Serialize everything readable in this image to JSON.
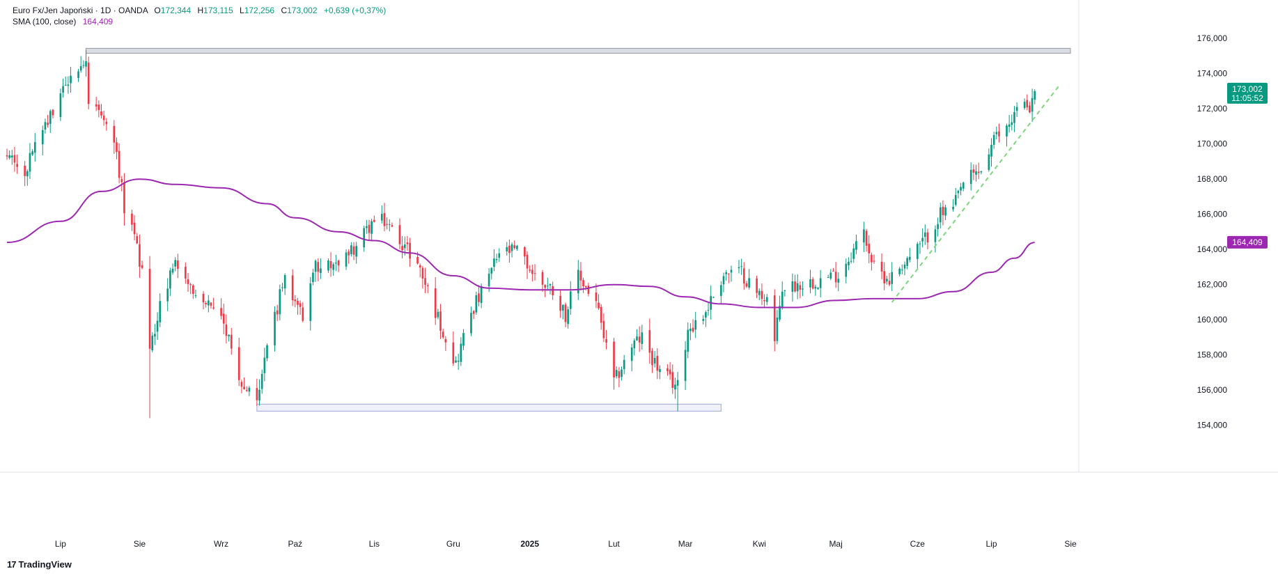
{
  "legend": {
    "symbol": "Euro Fx/Jen Japoński · 1D · OANDA",
    "open_label": "O",
    "open": "172,344",
    "high_label": "H",
    "high": "173,115",
    "low_label": "L",
    "low": "172,256",
    "close_label": "C",
    "close": "173,002",
    "change": "+0,639 (+0,37%)",
    "sma_label": "SMA (100, close)",
    "sma_value": "164,409"
  },
  "price_badge": {
    "price": "173,002",
    "countdown": "11:05:52",
    "color": "#089981"
  },
  "sma_badge": {
    "value": "164,409",
    "color": "#9c27b0"
  },
  "watermark": "TradingView",
  "colors": {
    "up": "#089981",
    "down": "#f23645",
    "sma": "#9c27b0",
    "trendline": "#7cd67c",
    "resistance_zone": "#b2b5be",
    "support_zone": "#c5cae9"
  },
  "chart_data": {
    "type": "candlestick",
    "title": "Euro Fx/Jen Japoński · 1D · OANDA",
    "y_ticks": [
      "176,000",
      "174,000",
      "172,000",
      "170,000",
      "168,000",
      "166,000",
      "164,000",
      "162,000",
      "160,000",
      "158,000",
      "156,000",
      "154,000"
    ],
    "ylim": [
      152.4,
      177.0
    ],
    "x_ticks": [
      "Lip",
      "Sie",
      "Wrz",
      "Paź",
      "Lis",
      "Gru",
      "2025",
      "Lut",
      "Mar",
      "Kwi",
      "Maj",
      "Cze",
      "Lip",
      "Sie"
    ],
    "x_tick_dates": [
      "2024-07-01",
      "2024-08-01",
      "2024-09-02",
      "2024-10-01",
      "2024-11-01",
      "2024-12-02",
      "2025-01-01",
      "2025-02-03",
      "2025-03-03",
      "2025-04-01",
      "2025-05-01",
      "2025-06-02",
      "2025-07-01",
      "2025-08-01"
    ],
    "close_waypoints": [
      [
        "2024-06-10",
        169.3
      ],
      [
        "2024-06-17",
        168.6
      ],
      [
        "2024-06-24",
        170.5
      ],
      [
        "2024-07-01",
        172.8
      ],
      [
        "2024-07-08",
        174.4
      ],
      [
        "2024-07-11",
        175.0
      ],
      [
        "2024-07-12",
        172.2
      ],
      [
        "2024-07-17",
        171.5
      ],
      [
        "2024-07-22",
        170.4
      ],
      [
        "2024-07-26",
        166.5
      ],
      [
        "2024-07-31",
        164.0
      ],
      [
        "2024-08-02",
        162.5
      ],
      [
        "2024-08-05",
        158.0
      ],
      [
        "2024-08-09",
        161.0
      ],
      [
        "2024-08-15",
        163.4
      ],
      [
        "2024-08-23",
        161.5
      ],
      [
        "2024-08-30",
        160.8
      ],
      [
        "2024-09-06",
        158.5
      ],
      [
        "2024-09-11",
        156.0
      ],
      [
        "2024-09-16",
        155.8
      ],
      [
        "2024-09-20",
        158.3
      ],
      [
        "2024-09-27",
        162.5
      ],
      [
        "2024-10-04",
        160.2
      ],
      [
        "2024-10-09",
        163.0
      ],
      [
        "2024-10-18",
        163.3
      ],
      [
        "2024-10-25",
        164.2
      ],
      [
        "2024-10-31",
        165.5
      ],
      [
        "2024-11-05",
        165.6
      ],
      [
        "2024-11-11",
        164.6
      ],
      [
        "2024-11-18",
        163.2
      ],
      [
        "2024-11-25",
        160.5
      ],
      [
        "2024-12-03",
        157.5
      ],
      [
        "2024-12-09",
        160.5
      ],
      [
        "2024-12-13",
        161.5
      ],
      [
        "2024-12-20",
        163.8
      ],
      [
        "2024-12-27",
        163.9
      ],
      [
        "2025-01-03",
        162.5
      ],
      [
        "2025-01-10",
        161.7
      ],
      [
        "2025-01-15",
        160.3
      ],
      [
        "2025-01-20",
        162.5
      ],
      [
        "2025-01-27",
        161.0
      ],
      [
        "2025-02-03",
        156.4
      ],
      [
        "2025-02-10",
        158.5
      ],
      [
        "2025-02-14",
        159.0
      ],
      [
        "2025-02-21",
        157.0
      ],
      [
        "2025-02-28",
        156.2
      ],
      [
        "2025-03-04",
        159.5
      ],
      [
        "2025-03-10",
        160.2
      ],
      [
        "2025-03-18",
        162.6
      ],
      [
        "2025-03-25",
        162.7
      ],
      [
        "2025-03-31",
        161.5
      ],
      [
        "2025-04-04",
        161.3
      ],
      [
        "2025-04-07",
        158.7
      ],
      [
        "2025-04-10",
        161.8
      ],
      [
        "2025-04-16",
        162.0
      ],
      [
        "2025-04-25",
        162.3
      ],
      [
        "2025-05-02",
        162.6
      ],
      [
        "2025-05-06",
        163.5
      ],
      [
        "2025-05-12",
        165.0
      ],
      [
        "2025-05-16",
        162.9
      ],
      [
        "2025-05-22",
        162.3
      ],
      [
        "2025-05-26",
        163.0
      ],
      [
        "2025-06-02",
        164.0
      ],
      [
        "2025-06-06",
        164.8
      ],
      [
        "2025-06-11",
        166.0
      ],
      [
        "2025-06-16",
        166.3
      ],
      [
        "2025-06-20",
        167.8
      ],
      [
        "2025-06-27",
        168.5
      ],
      [
        "2025-07-02",
        170.2
      ],
      [
        "2025-07-07",
        171.0
      ],
      [
        "2025-07-11",
        172.0
      ],
      [
        "2025-07-17",
        172.3
      ],
      [
        "2025-07-18",
        173.0
      ]
    ],
    "sma": {
      "name": "SMA (100, close)",
      "points": [
        [
          "2024-06-10",
          164.4
        ],
        [
          "2024-07-01",
          165.6
        ],
        [
          "2024-07-17",
          167.3
        ],
        [
          "2024-08-01",
          168.0
        ],
        [
          "2024-08-15",
          167.7
        ],
        [
          "2024-09-02",
          167.5
        ],
        [
          "2024-09-20",
          166.6
        ],
        [
          "2024-10-01",
          165.8
        ],
        [
          "2024-10-18",
          165.0
        ],
        [
          "2024-11-01",
          164.5
        ],
        [
          "2024-11-15",
          163.8
        ],
        [
          "2024-12-02",
          162.5
        ],
        [
          "2024-12-16",
          161.8
        ],
        [
          "2025-01-01",
          161.7
        ],
        [
          "2025-01-17",
          161.7
        ],
        [
          "2025-02-03",
          162.0
        ],
        [
          "2025-02-17",
          161.9
        ],
        [
          "2025-03-03",
          161.3
        ],
        [
          "2025-03-17",
          160.9
        ],
        [
          "2025-04-01",
          160.7
        ],
        [
          "2025-04-15",
          160.7
        ],
        [
          "2025-05-01",
          161.1
        ],
        [
          "2025-05-15",
          161.2
        ],
        [
          "2025-06-02",
          161.2
        ],
        [
          "2025-06-16",
          161.6
        ],
        [
          "2025-07-01",
          162.7
        ],
        [
          "2025-07-10",
          163.5
        ],
        [
          "2025-07-18",
          164.4
        ]
      ]
    },
    "resistance_zone": {
      "start": "2024-07-11",
      "end": "2025-08-01",
      "low": 175.2,
      "high": 175.4
    },
    "support_zone": {
      "start": "2024-09-16",
      "end": "2025-03-17",
      "low": 154.8,
      "high": 155.2
    },
    "trendline": {
      "x": [
        "2025-05-23",
        "2025-07-28"
      ],
      "y": [
        161.0,
        173.4
      ]
    }
  }
}
